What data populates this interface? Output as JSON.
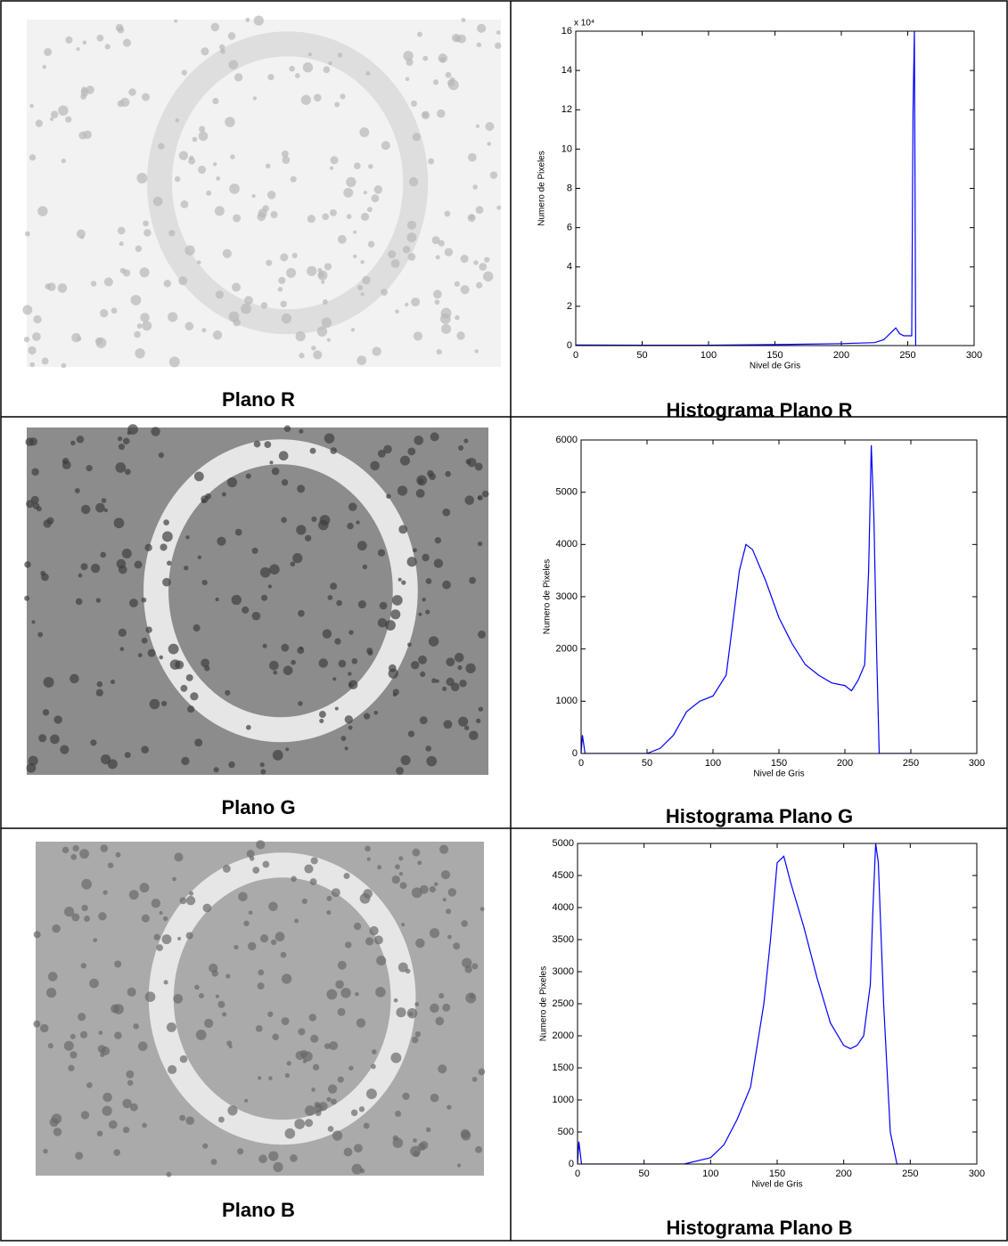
{
  "image_captions": [
    "Plano R",
    "Plano G",
    "Plano B"
  ],
  "chart_data": [
    {
      "type": "line",
      "title": "Histograma Plano R",
      "xlabel": "Nivel de Gris",
      "ylabel": "Numero de Pixeles",
      "y_multiplier": "x 10⁴",
      "color": "#0000ff",
      "x": [
        0,
        50,
        100,
        150,
        200,
        225,
        232,
        238,
        241,
        244,
        247,
        250,
        253,
        254,
        255,
        256
      ],
      "values": [
        300,
        200,
        200,
        500,
        1000,
        1500,
        3000,
        7000,
        9000,
        6000,
        5000,
        5000,
        5000,
        120000,
        160000,
        0
      ],
      "xlim": [
        0,
        300
      ],
      "xticks": [
        0,
        50,
        100,
        150,
        200,
        250,
        300
      ],
      "ylim": [
        0,
        160000
      ],
      "yticks": [
        {
          "value": 0,
          "label": "0"
        },
        {
          "value": 20000,
          "label": "2"
        },
        {
          "value": 40000,
          "label": "4"
        },
        {
          "value": 60000,
          "label": "6"
        },
        {
          "value": 80000,
          "label": "8"
        },
        {
          "value": 100000,
          "label": "10"
        },
        {
          "value": 120000,
          "label": "12"
        },
        {
          "value": 140000,
          "label": "14"
        },
        {
          "value": 160000,
          "label": "16"
        }
      ]
    },
    {
      "type": "line",
      "title": "Histograma Plano G",
      "xlabel": "Nivel de Gris",
      "ylabel": "Numero de Pixeles",
      "color": "#0000ff",
      "x": [
        0,
        1,
        3,
        50,
        60,
        70,
        80,
        90,
        100,
        110,
        115,
        120,
        125,
        130,
        140,
        150,
        160,
        170,
        180,
        190,
        200,
        205,
        210,
        215,
        218,
        220,
        222,
        224,
        226,
        250
      ],
      "values": [
        0,
        350,
        0,
        0,
        100,
        350,
        800,
        1000,
        1100,
        1500,
        2500,
        3500,
        4000,
        3900,
        3300,
        2600,
        2100,
        1700,
        1500,
        1350,
        1300,
        1200,
        1400,
        1700,
        3500,
        5900,
        4500,
        2000,
        0,
        0
      ],
      "xlim": [
        0,
        300
      ],
      "xticks": [
        0,
        50,
        100,
        150,
        200,
        250,
        300
      ],
      "ylim": [
        0,
        6000
      ],
      "yticks": [
        0,
        1000,
        2000,
        3000,
        4000,
        5000,
        6000
      ]
    },
    {
      "type": "line",
      "title": "Histograma Plano B",
      "xlabel": "Nivel de Gris",
      "ylabel": "Numero de Pixeles",
      "color": "#0000ff",
      "x": [
        0,
        1,
        3,
        80,
        100,
        110,
        120,
        130,
        140,
        145,
        150,
        155,
        160,
        170,
        180,
        190,
        200,
        205,
        210,
        215,
        220,
        222,
        224,
        226,
        230,
        235,
        240,
        250
      ],
      "values": [
        0,
        350,
        0,
        0,
        100,
        300,
        700,
        1200,
        2500,
        3500,
        4700,
        4800,
        4400,
        3700,
        2900,
        2200,
        1850,
        1800,
        1850,
        2000,
        2800,
        4000,
        5000,
        4700,
        2500,
        500,
        0,
        0
      ],
      "xlim": [
        0,
        300
      ],
      "xticks": [
        0,
        50,
        100,
        150,
        200,
        250,
        300
      ],
      "ylim": [
        0,
        5000
      ],
      "yticks": [
        0,
        500,
        1000,
        1500,
        2000,
        2500,
        3000,
        3500,
        4000,
        4500,
        5000
      ]
    }
  ]
}
